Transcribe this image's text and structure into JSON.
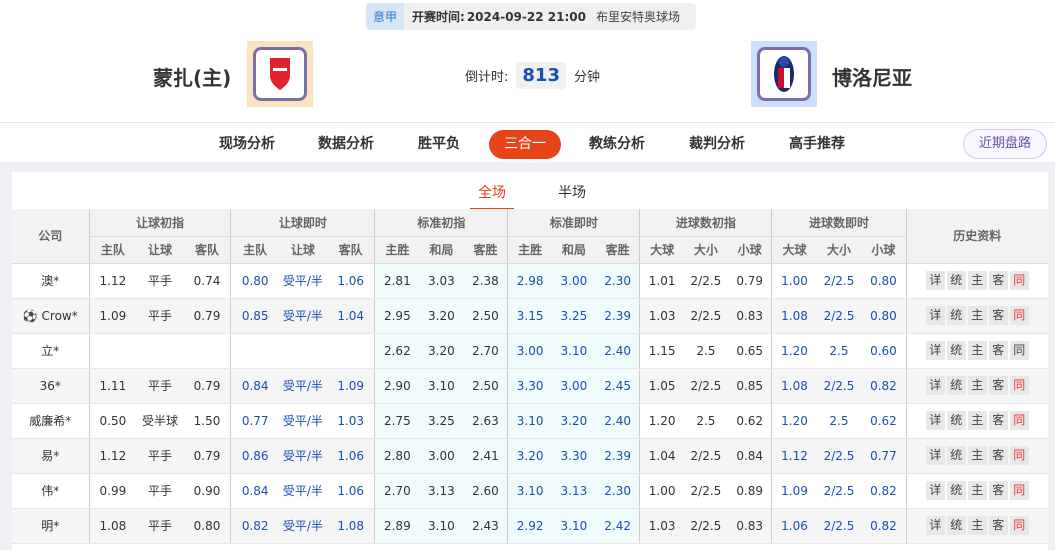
{
  "match": {
    "league": "意甲",
    "time_label": "开赛时间:",
    "time": "2024-09-22 21:00",
    "venue": "布里安特奥球场",
    "home": "蒙扎(主)",
    "away": "博洛尼亚",
    "countdown_label": "倒计时:",
    "countdown": "813",
    "countdown_unit": "分钟"
  },
  "nav": {
    "items": [
      "现场分析",
      "数据分析",
      "胜平负",
      "三合一",
      "教练分析",
      "裁判分析",
      "高手推荐"
    ],
    "active": "三合一",
    "recent": "近期盘路"
  },
  "tabs": {
    "items": [
      "全场",
      "半场"
    ],
    "active": "全场"
  },
  "table": {
    "company_header": "公司",
    "groups": [
      "让球初指",
      "让球即时",
      "标准初指",
      "标准即时",
      "进球数初指",
      "进球数即时",
      "历史资料"
    ],
    "subheaders": [
      "主队",
      "让球",
      "客队",
      "主队",
      "让球",
      "客队",
      "主胜",
      "和局",
      "客胜",
      "主胜",
      "和局",
      "客胜",
      "大球",
      "大小",
      "小球",
      "大球",
      "大小",
      "小球"
    ],
    "history_buttons": [
      "详",
      "统",
      "主",
      "客",
      "同"
    ],
    "rows": [
      {
        "company": "澳*",
        "v": [
          "1.12",
          "平手",
          "0.74",
          "0.80",
          "受平/半",
          "1.06",
          "2.81",
          "3.03",
          "2.38",
          "2.98",
          "3.00",
          "2.30",
          "1.01",
          "2/2.5",
          "0.79",
          "1.00",
          "2/2.5",
          "0.80"
        ],
        "same_red": true
      },
      {
        "company": "Crow*",
        "icon": "soccer-ball-icon",
        "v": [
          "1.09",
          "平手",
          "0.79",
          "0.85",
          "受平/半",
          "1.04",
          "2.95",
          "3.20",
          "2.50",
          "3.15",
          "3.25",
          "2.39",
          "1.03",
          "2/2.5",
          "0.83",
          "1.08",
          "2/2.5",
          "0.80"
        ],
        "same_red": true
      },
      {
        "company": "立*",
        "v": [
          "",
          "",
          "",
          "",
          "",
          "",
          "2.62",
          "3.20",
          "2.70",
          "3.00",
          "3.10",
          "2.40",
          "1.15",
          "2.5",
          "0.65",
          "1.20",
          "2.5",
          "0.60"
        ],
        "same_red": false
      },
      {
        "company": "36*",
        "v": [
          "1.11",
          "平手",
          "0.79",
          "0.84",
          "受平/半",
          "1.09",
          "2.90",
          "3.10",
          "2.50",
          "3.30",
          "3.00",
          "2.45",
          "1.05",
          "2/2.5",
          "0.85",
          "1.08",
          "2/2.5",
          "0.82"
        ],
        "same_red": true
      },
      {
        "company": "威廉希*",
        "v": [
          "0.50",
          "受半球",
          "1.50",
          "0.77",
          "受平/半",
          "1.03",
          "2.75",
          "3.25",
          "2.63",
          "3.10",
          "3.20",
          "2.40",
          "1.20",
          "2.5",
          "0.62",
          "1.20",
          "2.5",
          "0.62"
        ],
        "same_red": true
      },
      {
        "company": "易*",
        "v": [
          "1.12",
          "平手",
          "0.79",
          "0.86",
          "受平/半",
          "1.06",
          "2.80",
          "3.00",
          "2.41",
          "3.20",
          "3.30",
          "2.39",
          "1.04",
          "2/2.5",
          "0.84",
          "1.12",
          "2/2.5",
          "0.77"
        ],
        "same_red": true
      },
      {
        "company": "伟*",
        "v": [
          "0.99",
          "平手",
          "0.90",
          "0.84",
          "受平/半",
          "1.06",
          "2.70",
          "3.13",
          "2.60",
          "3.10",
          "3.13",
          "2.30",
          "1.00",
          "2/2.5",
          "0.89",
          "1.09",
          "2/2.5",
          "0.82"
        ],
        "same_red": true
      },
      {
        "company": "明*",
        "v": [
          "1.08",
          "平手",
          "0.80",
          "0.82",
          "受平/半",
          "1.08",
          "2.89",
          "3.10",
          "2.43",
          "2.92",
          "3.10",
          "2.42",
          "1.03",
          "2/2.5",
          "0.83",
          "1.06",
          "2/2.5",
          "0.82"
        ],
        "same_red": true
      }
    ]
  },
  "colors": {
    "accent": "#e8441a",
    "live_blue": "#1a4fb0",
    "same_red": "#e33333"
  }
}
